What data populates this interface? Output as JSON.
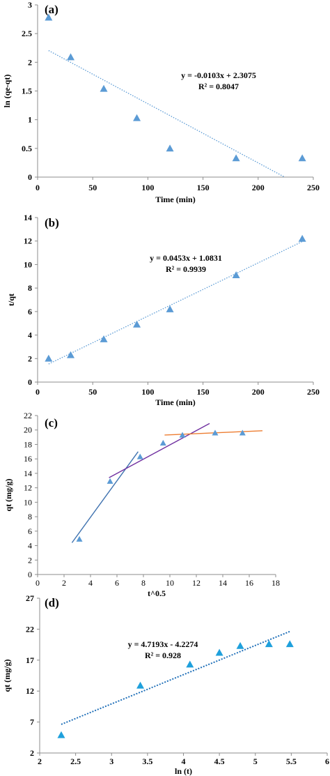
{
  "colors": {
    "marker": "#5B9BD5",
    "marker_d": "#1FA0DC",
    "trend": "#5B9BD5",
    "trend_d": "#1F6FB8",
    "line_c_blue": "#3F72AF",
    "line_c_purple": "#7030A0",
    "line_c_orange": "#ED7D31",
    "axis": "#8C8C8C"
  },
  "chart_data": [
    {
      "panel_label": "(a)",
      "type": "scatter",
      "xlabel": "Time (min)",
      "ylabel": "ln (qe-qt)",
      "xlim": [
        0,
        250
      ],
      "ylim": [
        0,
        3
      ],
      "x_ticks": [
        "0",
        "50",
        "100",
        "150",
        "200",
        "250"
      ],
      "y_ticks": [
        "0",
        "0.5",
        "1",
        "1.5",
        "2",
        "2.5",
        "3"
      ],
      "grid": false,
      "marker": "triangle",
      "series": [
        {
          "x": [
            10,
            30,
            60,
            90,
            120,
            180,
            240
          ],
          "y": [
            2.78,
            2.09,
            1.54,
            1.03,
            0.5,
            0.33,
            0.33
          ]
        }
      ],
      "trendline": {
        "slope": -0.0103,
        "intercept": 2.3075,
        "x": [
          10,
          224
        ],
        "style": "dotted"
      },
      "equation": "y = -0.0103x + 2.3075",
      "r2": "R² = 0.8047"
    },
    {
      "panel_label": "(b)",
      "type": "scatter",
      "xlabel": "Time (min)",
      "ylabel": "t/qt",
      "xlim": [
        0,
        250
      ],
      "ylim": [
        0,
        14
      ],
      "x_ticks": [
        "0",
        "50",
        "100",
        "150",
        "200",
        "250"
      ],
      "y_ticks": [
        "0",
        "2",
        "4",
        "6",
        "8",
        "10",
        "12",
        "14"
      ],
      "grid": false,
      "marker": "triangle",
      "series": [
        {
          "x": [
            10,
            30,
            60,
            90,
            120,
            180,
            240
          ],
          "y": [
            2.0,
            2.3,
            3.65,
            4.9,
            6.2,
            9.1,
            12.2
          ]
        }
      ],
      "trendline": {
        "slope": 0.0453,
        "intercept": 1.0831,
        "x": [
          10,
          240
        ],
        "style": "dotted"
      },
      "equation": "y = 0.0453x + 1.0831",
      "r2": "R² = 0.9939"
    },
    {
      "panel_label": "(c)",
      "type": "scatter",
      "xlabel": "t^0.5",
      "ylabel": "qt (mg/g)",
      "xlim": [
        0,
        18
      ],
      "ylim": [
        0,
        22
      ],
      "x_ticks": [
        "0",
        "2",
        "4",
        "6",
        "8",
        "10",
        "12",
        "14",
        "16",
        "18"
      ],
      "y_ticks": [
        "0",
        "2",
        "4",
        "6",
        "8",
        "10",
        "12",
        "14",
        "16",
        "18",
        "20",
        "22"
      ],
      "grid": false,
      "marker": "triangle",
      "series": [
        {
          "x": [
            3.16,
            5.48,
            7.75,
            9.49,
            10.95,
            13.42,
            15.49
          ],
          "y": [
            4.9,
            12.9,
            16.3,
            18.2,
            19.3,
            19.6,
            19.6
          ]
        }
      ],
      "segments": [
        {
          "color_key": "line_c_blue",
          "x": [
            2.6,
            7.6
          ],
          "y": [
            4.4,
            17.0
          ]
        },
        {
          "color_key": "line_c_purple",
          "x": [
            5.4,
            13.0
          ],
          "y": [
            13.4,
            20.9
          ]
        },
        {
          "color_key": "line_c_orange",
          "x": [
            9.6,
            17.0
          ],
          "y": [
            19.3,
            19.9
          ]
        }
      ]
    },
    {
      "panel_label": "(d)",
      "type": "scatter",
      "xlabel": "ln (t)",
      "ylabel": "qt (mg/g)",
      "xlim": [
        2,
        6
      ],
      "ylim": [
        2,
        27
      ],
      "x_ticks": [
        "2",
        "2.5",
        "3",
        "3.5",
        "4",
        "4.5",
        "5",
        "5.5",
        "6"
      ],
      "y_ticks": [
        "2",
        "7",
        "12",
        "17",
        "22",
        "27"
      ],
      "grid": false,
      "marker": "triangle",
      "series": [
        {
          "x": [
            2.3,
            3.4,
            4.09,
            4.5,
            4.79,
            5.19,
            5.48
          ],
          "y": [
            4.9,
            12.9,
            16.3,
            18.2,
            19.3,
            19.6,
            19.6
          ]
        }
      ],
      "trendline": {
        "slope": 4.7193,
        "intercept": -4.2274,
        "x": [
          2.3,
          5.48
        ],
        "style": "dotted"
      },
      "equation": "y = 4.7193x - 4.2274",
      "r2": "R² = 0.928"
    }
  ]
}
